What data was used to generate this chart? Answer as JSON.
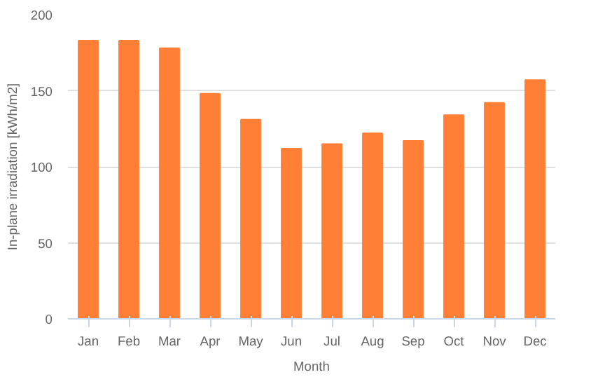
{
  "chart_data": {
    "type": "bar",
    "xlabel": "Month",
    "ylabel": "In-plane irradiation [kWh/m2]",
    "categories": [
      "Jan",
      "Feb",
      "Mar",
      "Apr",
      "May",
      "Jun",
      "Jul",
      "Aug",
      "Sep",
      "Oct",
      "Nov",
      "Dec"
    ],
    "values": [
      183,
      183,
      178,
      148,
      131,
      112,
      115,
      122,
      117,
      134,
      142,
      157
    ],
    "color": "#fe7f35",
    "ylim": [
      0,
      200
    ],
    "yticks": [
      0,
      50,
      100,
      150,
      200
    ],
    "grid": "y"
  }
}
